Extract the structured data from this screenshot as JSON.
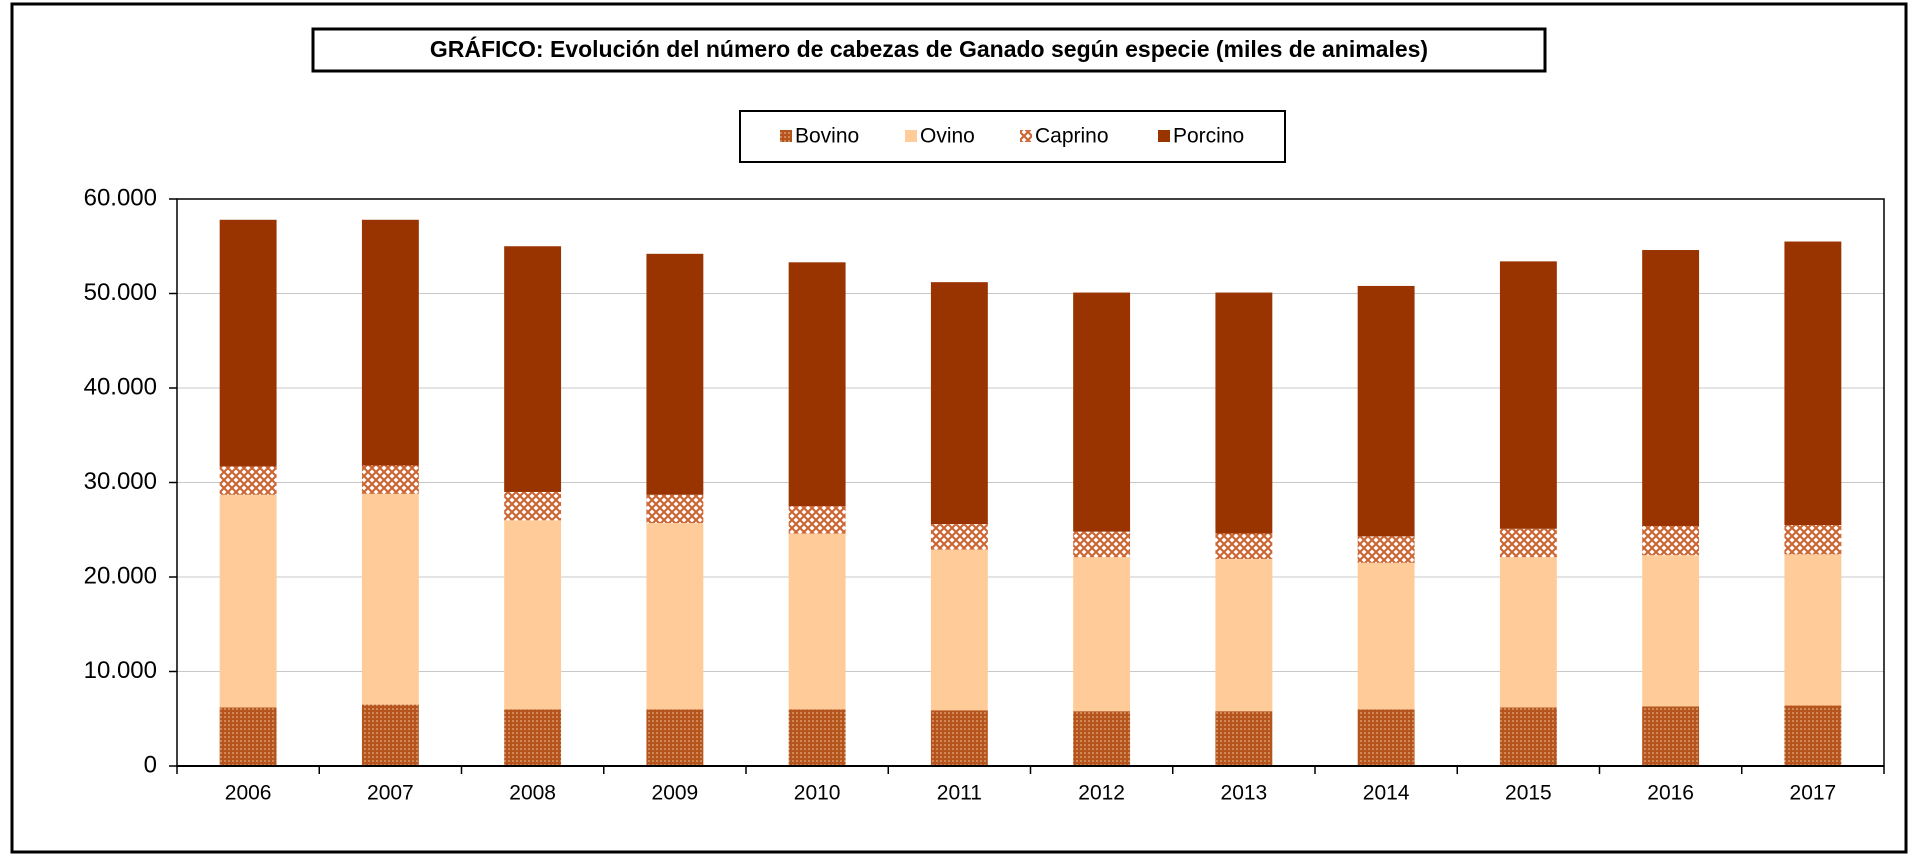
{
  "chart_data": {
    "type": "stacked_bar",
    "title": "GRÁFICO: Evolución del número de cabezas de Ganado según especie (miles de animales)",
    "categories": [
      "2006",
      "2007",
      "2008",
      "2009",
      "2010",
      "2011",
      "2012",
      "2013",
      "2014",
      "2015",
      "2016",
      "2017"
    ],
    "series": [
      {
        "name": "Bovino",
        "color": "#b5541c",
        "pattern": "dots",
        "values": [
          6200,
          6500,
          6000,
          6000,
          6000,
          5900,
          5800,
          5800,
          6000,
          6200,
          6300,
          6400
        ]
      },
      {
        "name": "Ovino",
        "color": "#ffcc99",
        "pattern": null,
        "values": [
          22500,
          22300,
          20000,
          19700,
          18600,
          17000,
          16300,
          16100,
          15500,
          15900,
          16000,
          16000
        ]
      },
      {
        "name": "Caprino",
        "color": "#cc6633",
        "pattern": "crosshatch",
        "values": [
          3000,
          3000,
          3000,
          3000,
          2900,
          2700,
          2700,
          2700,
          2800,
          3000,
          3100,
          3100
        ]
      },
      {
        "name": "Porcino",
        "color": "#993300",
        "pattern": null,
        "values": [
          26100,
          26000,
          26000,
          25500,
          25800,
          25600,
          25300,
          25500,
          26500,
          28300,
          29200,
          30000
        ]
      }
    ],
    "ylim": [
      0,
      60000
    ],
    "yticks": [
      0,
      {
        "value": 10000,
        "label": "10.000"
      },
      {
        "value": 20000,
        "label": "20.000"
      },
      {
        "value": 30000,
        "label": "30.000"
      },
      {
        "value": 40000,
        "label": "40.000"
      },
      {
        "value": 50000,
        "label": "50.000"
      },
      {
        "value": 60000,
        "label": "60.000"
      }
    ],
    "grid": true,
    "legend": "top"
  }
}
